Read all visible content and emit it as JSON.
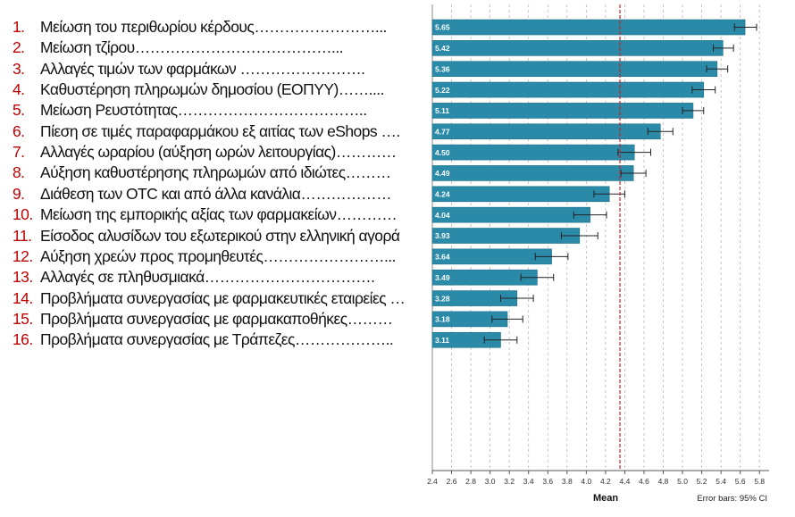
{
  "chart_data": {
    "type": "bar",
    "orientation": "horizontal",
    "categories": [
      {
        "num": "1.",
        "label": "Μείωση του περιθωρίου κέρδους……………………..."
      },
      {
        "num": "2.",
        "label": "Μείωση τζίρου…………………………………..."
      },
      {
        "num": "3.",
        "label": "Αλλαγές τιμών των φαρμάκων ……………………."
      },
      {
        "num": "4.",
        "label": "Καθυστέρηση πληρωμών δημοσίου (ΕΟΠΥΥ)……...."
      },
      {
        "num": "5.",
        "label": "Μείωση Ρευστότητας……………………………….."
      },
      {
        "num": "6.",
        "label": "Πίεση σε τιμές παραφαρμάκου εξ αιτίας των eShops …."
      },
      {
        "num": "7.",
        "label": "Αλλαγές ωραρίου (αύξηση ωρών λειτουργίας)…………"
      },
      {
        "num": "8.",
        "label": "Αύξηση καθυστέρησης πληρωμών από ιδιώτες………"
      },
      {
        "num": "9.",
        "label": "Διάθεση των OTC και από άλλα κανάλια………………"
      },
      {
        "num": "10.",
        "label": "Μείωση της εμπορικής αξίας των φαρμακείων…………"
      },
      {
        "num": "11.",
        "label": "Είσοδος αλυσίδων του εξωτερικού στην ελληνική αγορά"
      },
      {
        "num": "12.",
        "label": "Αύξηση χρεών προς προμηθευτές……………………..."
      },
      {
        "num": "13.",
        "label": "Αλλαγές σε πληθυσμιακά……………………………."
      },
      {
        "num": "14.",
        "label": "Προβλήματα συνεργασίας με φαρμακευτικές εταιρείες …"
      },
      {
        "num": "15.",
        "label": "Προβλήματα συνεργασίας με φαρμακαποθήκες………"
      },
      {
        "num": "16.",
        "label": "Προβλήματα συνεργασίας με Τράπεζες……………….."
      }
    ],
    "values": [
      5.65,
      5.42,
      5.36,
      5.22,
      5.11,
      4.77,
      4.5,
      4.49,
      4.24,
      4.04,
      3.93,
      3.64,
      3.49,
      3.28,
      3.18,
      3.11
    ],
    "ci_low": [
      5.54,
      5.32,
      5.25,
      5.1,
      5.0,
      4.64,
      4.33,
      4.36,
      4.08,
      3.87,
      3.74,
      3.47,
      3.32,
      3.11,
      3.02,
      2.94
    ],
    "ci_high": [
      5.77,
      5.53,
      5.47,
      5.34,
      5.22,
      4.9,
      4.67,
      4.62,
      4.4,
      4.21,
      4.12,
      3.81,
      3.66,
      3.45,
      3.34,
      3.28
    ],
    "reference_line": 4.35,
    "xlim": [
      2.4,
      5.9
    ],
    "xticks": [
      "2.4",
      "2.6",
      "2.8",
      "3.0",
      "3.2",
      "3.4",
      "3.6",
      "3.8",
      "4.0",
      "4.2",
      "4.4",
      "4.6",
      "4.8",
      "5.0",
      "5.2",
      "5.4",
      "5.6",
      "5.8"
    ],
    "xlabel": "Mean",
    "note": "Error bars: 95% CI",
    "grid": true,
    "colors": {
      "bar": "#2a8aa8",
      "bar_border": "#1d6f89",
      "reference_line": "#cc2222",
      "grid": "#b8b8b8",
      "axis": "#555555"
    }
  }
}
